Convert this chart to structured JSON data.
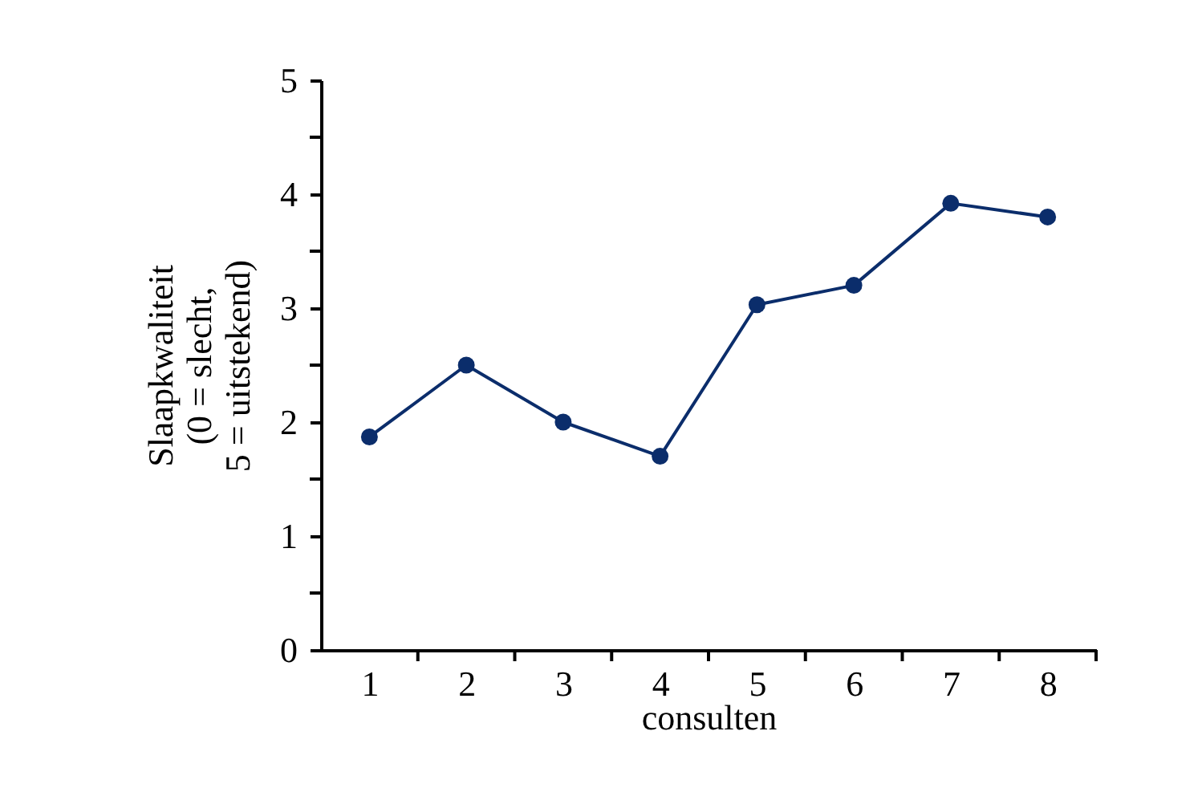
{
  "chart_data": {
    "type": "line",
    "xlabel": "consulten",
    "ylabel": "Slaapkwaliteit\n(0 = slecht,\n5 = uitstekend)",
    "x": [
      1,
      2,
      3,
      4,
      5,
      6,
      7,
      8
    ],
    "series": [
      {
        "color": "#0b2d6b",
        "values": [
          1.87,
          2.5,
          2.0,
          1.7,
          3.03,
          3.2,
          3.92,
          3.8
        ]
      }
    ],
    "xlim": [
      0.5,
      8.5
    ],
    "xticks": [
      1,
      {
        "value": 1.5,
        "label": null
      },
      2,
      {
        "value": 2.5,
        "label": null
      },
      3,
      {
        "value": 3.5,
        "label": null
      },
      4,
      {
        "value": 4.5,
        "label": null
      },
      5,
      {
        "value": 5.5,
        "label": null
      },
      6,
      {
        "value": 6.5,
        "label": null
      },
      7,
      {
        "value": 7.5,
        "label": null
      },
      8,
      {
        "value": 8.5,
        "label": null
      }
    ],
    "ylim": [
      0,
      5
    ],
    "yticks": [
      0,
      {
        "value": 0.5,
        "label": null
      },
      1,
      {
        "value": 1.5,
        "label": null
      },
      2,
      {
        "value": 2.5,
        "label": null
      },
      3,
      {
        "value": 3.5,
        "label": null
      },
      4,
      {
        "value": 4.5,
        "label": null
      },
      5
    ],
    "marker": "circle",
    "line_style": "solid",
    "grid": false,
    "legend": false
  }
}
